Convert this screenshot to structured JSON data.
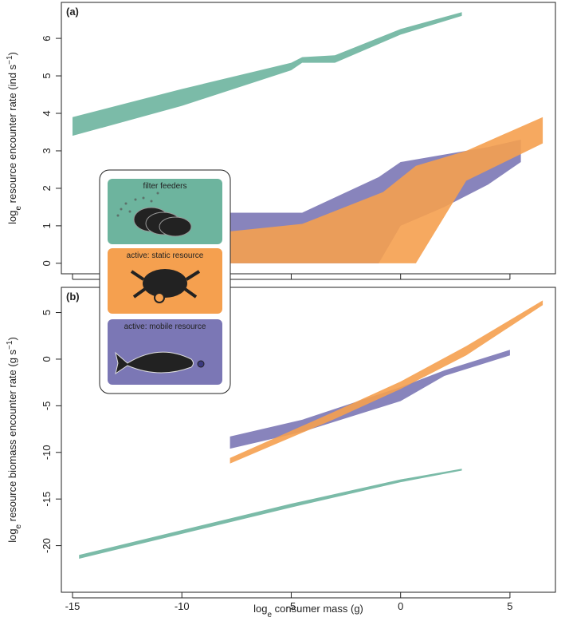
{
  "chart_data": [
    {
      "type": "band",
      "title": "(a)",
      "ylabel_parts": [
        "log",
        "e",
        " resource encounter rate (ind s",
        "−1",
        ")"
      ],
      "xlim": [
        -15.51,
        7.08
      ],
      "xticks": [
        -15,
        -10,
        -5,
        0,
        5
      ],
      "ylim": [
        -0.28,
        6.96
      ],
      "yticks": [
        0,
        1,
        2,
        3,
        4,
        5,
        6
      ],
      "series": [
        {
          "name": "filter feeders",
          "color": "#6db49e",
          "x": [
            -15,
            -10,
            -5,
            -4.5,
            -3,
            0,
            2.8
          ],
          "lower": [
            3.4,
            4.2,
            5.15,
            5.35,
            5.35,
            6.1,
            6.6
          ],
          "upper": [
            3.9,
            4.65,
            5.35,
            5.5,
            5.55,
            6.25,
            6.7
          ]
        },
        {
          "name": "active: mobile resource",
          "color": "#7b77b5",
          "x": [
            -7.8,
            -4.5,
            -1,
            0,
            2,
            4,
            5.5
          ],
          "lower": [
            0,
            0,
            0,
            1,
            1.5,
            2.1,
            2.7
          ],
          "upper": [
            1.35,
            1.35,
            2.3,
            2.7,
            2.9,
            3.1,
            3.3
          ]
        },
        {
          "name": "active: static resource",
          "color": "#f5a04f",
          "x": [
            -7.8,
            -4.5,
            -0.8,
            0.7,
            3,
            6.5
          ],
          "lower": [
            0,
            0,
            0,
            0,
            2.2,
            3.2
          ],
          "upper": [
            0.85,
            1.05,
            1.9,
            2.6,
            3.0,
            3.9
          ]
        }
      ]
    },
    {
      "type": "band",
      "title": "(b)",
      "ylabel_parts": [
        "log",
        "e",
        " resource biomass encounter rate (g s",
        "−1",
        ")"
      ],
      "xlabel_parts": [
        "log",
        "e",
        " consumer mass (g)"
      ],
      "xlim": [
        -15.51,
        7.08
      ],
      "xticks": [
        -15,
        -10,
        -5,
        0,
        5
      ],
      "ylim": [
        -25,
        7.7
      ],
      "yticks": [
        -20,
        -15,
        -10,
        -5,
        0,
        5
      ],
      "series": [
        {
          "color": "#6db49e",
          "x": [
            -14.7,
            -5,
            0,
            2.8
          ],
          "lower": [
            -21.4,
            -15.9,
            -13.2,
            -11.95
          ],
          "upper": [
            -21,
            -15.5,
            -12.9,
            -11.75
          ]
        },
        {
          "color": "#7b77b5",
          "x": [
            -7.8,
            -4.5,
            0,
            2,
            5
          ],
          "lower": [
            -9.6,
            -7.8,
            -4.5,
            -1.8,
            0.4
          ],
          "upper": [
            -8.3,
            -6.5,
            -3.0,
            -1.2,
            1.0
          ]
        },
        {
          "color": "#f5a04f",
          "x": [
            -7.8,
            -3,
            0,
            3,
            6.5
          ],
          "lower": [
            -11.2,
            -6.4,
            -3.2,
            0.4,
            5.8
          ],
          "upper": [
            -10.6,
            -5.6,
            -2.4,
            1.4,
            6.3
          ]
        }
      ]
    }
  ]
}
